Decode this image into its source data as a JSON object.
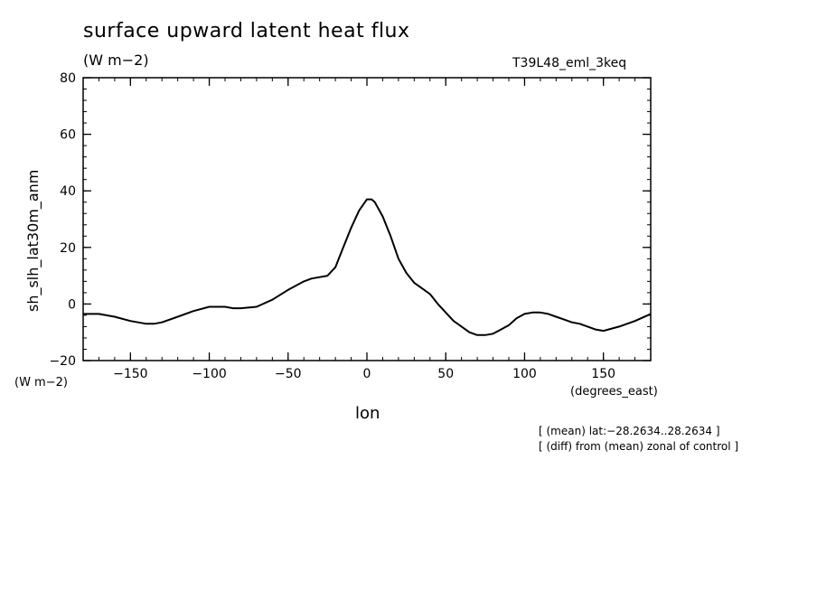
{
  "chart_data": {
    "type": "line",
    "title": "surface upward latent heat flux",
    "units_label": "(W m−2)",
    "run_label": "T39L48_eml_3keq",
    "ylabel": "sh_slh_lat30m_anm",
    "ylabel_units": "(W m−2)",
    "xlabel": "lon",
    "xlabel_units": "(degrees_east)",
    "annotations": [
      "[ (mean) lat:−28.2634..28.2634 ]",
      "[ (diff) from (mean) zonal of control ]"
    ],
    "xlim": [
      -180,
      180
    ],
    "ylim": [
      -20,
      80
    ],
    "xticks": [
      -150,
      -100,
      -50,
      0,
      50,
      100,
      150
    ],
    "xtick_labels": [
      "−150",
      "−100",
      "−50",
      "0",
      "50",
      "100",
      "150"
    ],
    "yticks": [
      -20,
      0,
      20,
      40,
      60,
      80
    ],
    "ytick_labels": [
      "−20",
      "0",
      "20",
      "40",
      "60",
      "80"
    ],
    "grid": false,
    "series": [
      {
        "x": [
          -180,
          -170,
          -160,
          -150,
          -140,
          -135,
          -130,
          -120,
          -110,
          -100,
          -95,
          -90,
          -85,
          -80,
          -70,
          -60,
          -50,
          -40,
          -35,
          -30,
          -25,
          -20,
          -15,
          -10,
          -5,
          0,
          3,
          5,
          10,
          15,
          20,
          25,
          30,
          35,
          40,
          45,
          50,
          55,
          60,
          65,
          70,
          75,
          80,
          85,
          90,
          95,
          100,
          105,
          110,
          115,
          120,
          125,
          130,
          135,
          140,
          145,
          150,
          160,
          170,
          180
        ],
        "y": [
          -3.5,
          -3.5,
          -4.5,
          -6,
          -7,
          -7,
          -6.5,
          -4.5,
          -2.5,
          -1,
          -1,
          -1,
          -1.5,
          -1.5,
          -1,
          1.5,
          5,
          8,
          9,
          9.5,
          10,
          13,
          20,
          27,
          33,
          37,
          37,
          36,
          31,
          24,
          16,
          11,
          7.5,
          5.5,
          3.5,
          0,
          -3,
          -6,
          -8,
          -10,
          -11,
          -11,
          -10.5,
          -9,
          -7.5,
          -5,
          -3.5,
          -3,
          -3,
          -3.5,
          -4.5,
          -5.5,
          -6.5,
          -7,
          -8,
          -9,
          -9.5,
          -8,
          -6,
          -3.5
        ]
      }
    ]
  }
}
